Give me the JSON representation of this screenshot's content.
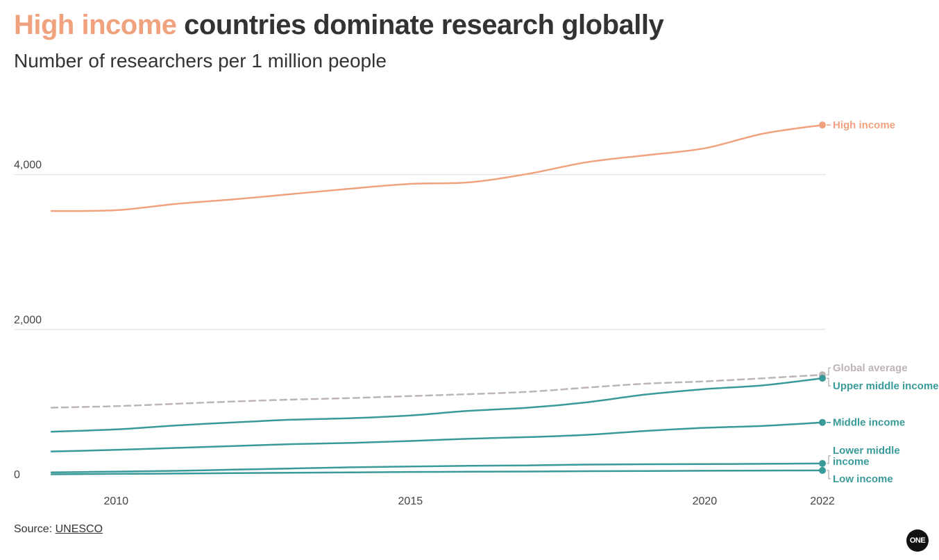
{
  "title": {
    "highlight": "High income",
    "rest": " countries dominate research globally"
  },
  "subtitle": "Number of researchers per 1 million people",
  "source": {
    "prefix": "Source: ",
    "link": "UNESCO"
  },
  "logo": "ONE",
  "colors": {
    "high": "#F0A27E",
    "teal": "#3A9A9A",
    "global": "#BDB4B4",
    "grid": "#DDDDDD"
  },
  "chart_data": {
    "type": "line",
    "title": "High income countries dominate research globally",
    "subtitle": "Number of researchers per 1 million people",
    "xlabel": "",
    "ylabel": "",
    "xlim": [
      2008.9,
      2022
    ],
    "ylim": [
      0,
      5000
    ],
    "x_ticks": [
      2010,
      2015,
      2020,
      2022
    ],
    "y_ticks": [
      0,
      2000,
      4000
    ],
    "x_tick_labels": [
      "2010",
      "2015",
      "2020",
      "2022"
    ],
    "y_tick_labels": [
      "0",
      "2,000",
      "4,000"
    ],
    "grid": "horizontal",
    "legend": "direct labels at line ends (right)",
    "x": [
      2009,
      2010,
      2011,
      2012,
      2013,
      2014,
      2015,
      2016,
      2017,
      2018,
      2019,
      2020,
      2021,
      2022
    ],
    "series": [
      {
        "name": "High income",
        "color": "#F0A27E",
        "dash": false,
        "values": [
          3530,
          3540,
          3620,
          3680,
          3750,
          3820,
          3880,
          3900,
          4010,
          4160,
          4250,
          4340,
          4530,
          4640
        ]
      },
      {
        "name": "Global average",
        "color": "#BDB4B4",
        "dash": true,
        "values": [
          990,
          1010,
          1040,
          1070,
          1095,
          1115,
          1140,
          1165,
          1195,
          1250,
          1300,
          1330,
          1370,
          1415
        ]
      },
      {
        "name": "Upper middle income",
        "color": "#3A9A9A",
        "dash": false,
        "values": [
          680,
          710,
          760,
          800,
          835,
          855,
          890,
          950,
          990,
          1060,
          1160,
          1230,
          1280,
          1370
        ]
      },
      {
        "name": "Middle income",
        "color": "#3A9A9A",
        "dash": false,
        "values": [
          425,
          445,
          470,
          495,
          520,
          535,
          560,
          590,
          610,
          640,
          690,
          730,
          755,
          800
        ]
      },
      {
        "name": "Lower middle income",
        "color": "#3A9A9A",
        "dash": false,
        "values": [
          155,
          165,
          175,
          190,
          205,
          220,
          230,
          240,
          245,
          255,
          260,
          262,
          265,
          270
        ]
      },
      {
        "name": "Low income",
        "color": "#3A9A9A",
        "dash": false,
        "values": [
          130,
          135,
          140,
          145,
          150,
          155,
          160,
          163,
          166,
          170,
          173,
          176,
          178,
          180
        ]
      }
    ],
    "end_labels": [
      {
        "series": "High income",
        "lines": [
          "High income"
        ]
      },
      {
        "series": "Global average",
        "lines": [
          "Global average"
        ]
      },
      {
        "series": "Upper middle income",
        "lines": [
          "Upper middle income"
        ]
      },
      {
        "series": "Middle income",
        "lines": [
          "Middle income"
        ]
      },
      {
        "series": "Lower middle income",
        "lines": [
          "Lower middle",
          "income"
        ]
      },
      {
        "series": "Low income",
        "lines": [
          "Low income"
        ]
      }
    ]
  }
}
